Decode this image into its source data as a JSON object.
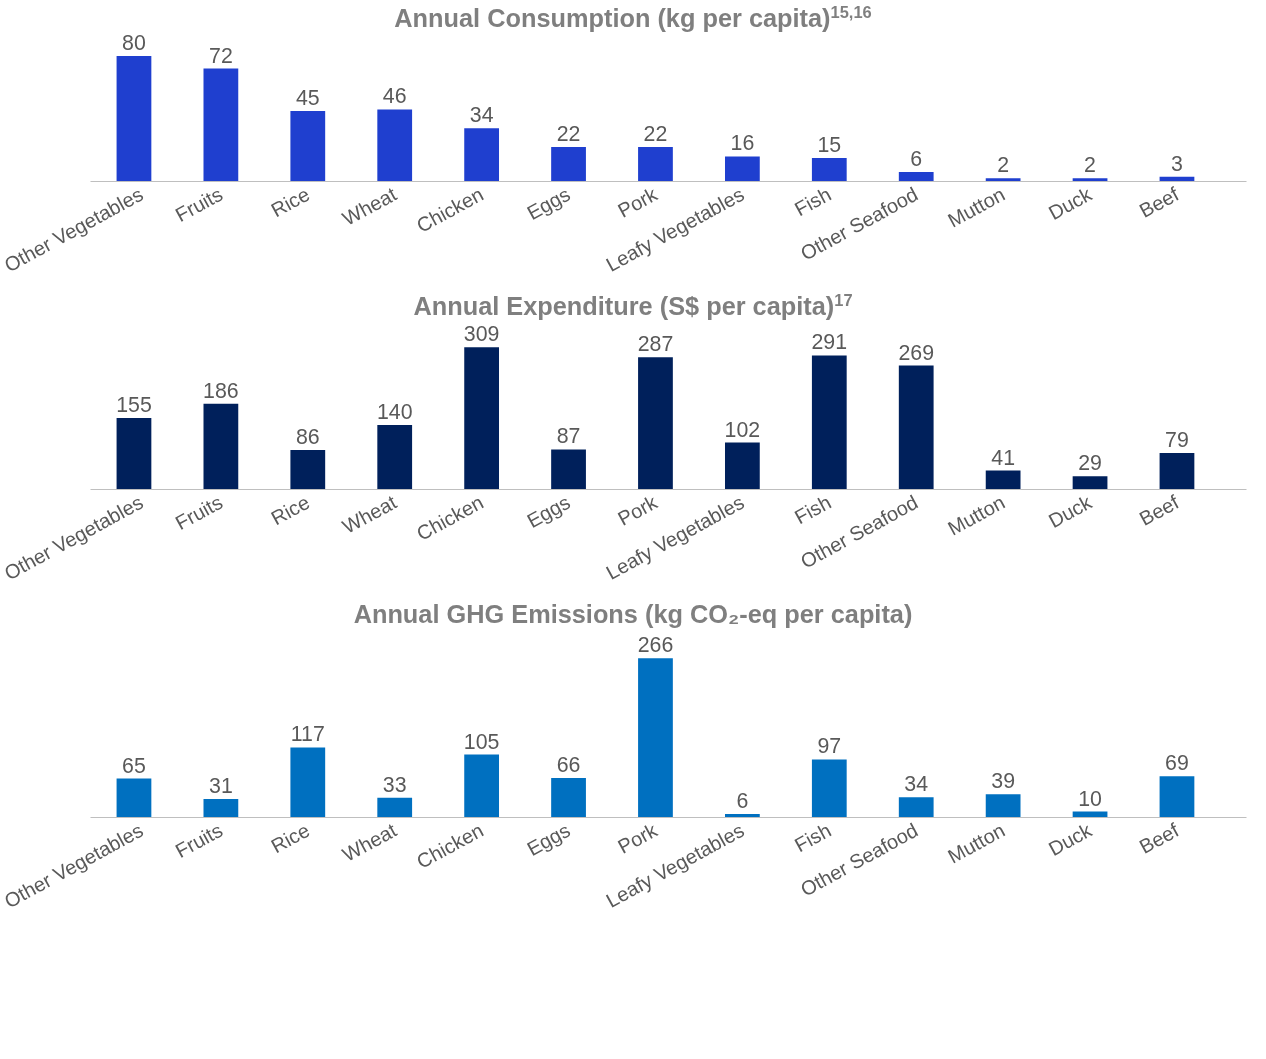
{
  "chart_data": [
    {
      "type": "bar",
      "title": "Annual Consumption (kg per capita)$^{15,16}$",
      "categories": [
        "Other Vegetables",
        "Fruits",
        "Rice",
        "Wheat",
        "Chicken",
        "Eggs",
        "Pork",
        "Leafy Vegetables",
        "Fish",
        "Other Seafood",
        "Mutton",
        "Duck",
        "Beef"
      ],
      "values": [
        80,
        72,
        45,
        46,
        34,
        22,
        22,
        16,
        15,
        6,
        2,
        2,
        3
      ],
      "color": "#1f3fcf",
      "data_labels": true,
      "grid": false,
      "tick_labels": "x"
    },
    {
      "type": "bar",
      "title": "Annual Expenditure (S$ per capita)$^{17}$",
      "categories": [
        "Other Vegetables",
        "Fruits",
        "Rice",
        "Wheat",
        "Chicken",
        "Eggs",
        "Pork",
        "Leafy Vegetables",
        "Fish",
        "Other Seafood",
        "Mutton",
        "Duck",
        "Beef"
      ],
      "values": [
        155,
        186,
        86,
        140,
        309,
        87,
        287,
        102,
        291,
        269,
        41,
        29,
        79
      ],
      "color": "#00205b",
      "data_labels": true,
      "grid": false,
      "tick_labels": "x"
    },
    {
      "type": "bar",
      "title": "Annual GHG Emissions (kg CO₂-eq per capita)",
      "categories": [
        "Other Vegetables",
        "Fruits",
        "Rice",
        "Wheat",
        "Chicken",
        "Eggs",
        "Pork",
        "Leafy Vegetables",
        "Fish",
        "Other Seafood",
        "Mutton",
        "Duck",
        "Beef"
      ],
      "values": [
        65,
        31,
        117,
        33,
        105,
        66,
        266,
        6,
        97,
        34,
        39,
        10,
        69
      ],
      "color": "#0070c0",
      "data_labels": true,
      "grid": false,
      "tick_labels": "x"
    }
  ]
}
